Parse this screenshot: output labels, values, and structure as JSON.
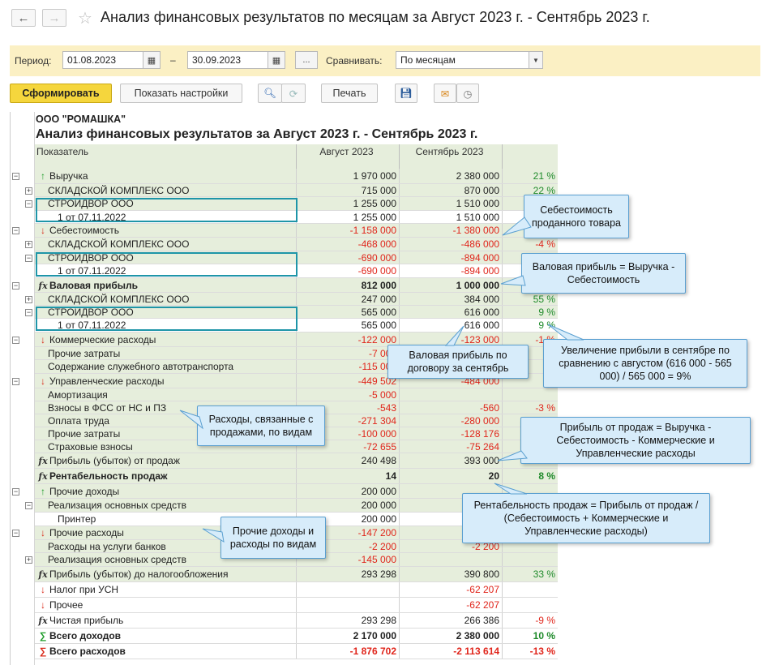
{
  "window": {
    "title": "Анализ финансовых результатов по месяцам за Август 2023 г. - Сентябрь 2023 г.",
    "back_icon": "←",
    "forward_icon": "→"
  },
  "filters": {
    "period_label": "Период:",
    "date_from": "01.08.2023",
    "dash": "–",
    "date_to": "30.09.2023",
    "more_label": "...",
    "compare_label": "Сравнивать:",
    "compare_value": "По месяцам"
  },
  "toolbar": {
    "generate_label": "Сформировать",
    "settings_label": "Показать настройки",
    "print_label": "Печать"
  },
  "report": {
    "company": "ООО \"РОМАШКА\"",
    "title": "Анализ финансовых результатов за Август 2023 г. - Сентябрь 2023 г.",
    "col_indicator": "Показатель",
    "col_aug": "Август 2023",
    "col_sep": "Сентябрь 2023",
    "rows": [
      {
        "name": "Выручка",
        "aug": "1 970 000",
        "sep": "2 380 000",
        "pct": "21 %",
        "icon": "↑",
        "iconClass": "up",
        "level": 0,
        "green": true,
        "bold": false,
        "toggle": "−"
      },
      {
        "name": "СКЛАДСКОЙ КОМПЛЕКС ООО",
        "aug": "715 000",
        "sep": "870 000",
        "pct": "22 %",
        "level": 1,
        "green": true,
        "toggle": "+"
      },
      {
        "name": "СТРОЙДВОР ООО",
        "aug": "1 255 000",
        "sep": "1 510 000",
        "pct": "",
        "level": 1,
        "green": true,
        "toggle": "−"
      },
      {
        "name": "1 от 07.11.2022",
        "aug": "1 255 000",
        "sep": "1 510 000",
        "pct": "",
        "level": 2,
        "green": false
      },
      {
        "name": "Себестоимость",
        "aug": "-1 158 000",
        "sep": "-1 380 000",
        "pct": "",
        "icon": "↓",
        "iconClass": "down",
        "level": 0,
        "green": true,
        "neg": true,
        "toggle": "−"
      },
      {
        "name": "СКЛАДСКОЙ КОМПЛЕКС ООО",
        "aug": "-468 000",
        "sep": "-486 000",
        "pct": "-4 %",
        "level": 1,
        "green": true,
        "neg": true,
        "toggle": "+"
      },
      {
        "name": "СТРОЙДВОР ООО",
        "aug": "-690 000",
        "sep": "-894 000",
        "pct": "",
        "level": 1,
        "green": true,
        "neg": true,
        "toggle": "−"
      },
      {
        "name": "1 от 07.11.2022",
        "aug": "-690 000",
        "sep": "-894 000",
        "pct": "",
        "level": 2,
        "green": false,
        "neg": true
      },
      {
        "name": "Валовая прибыль",
        "aug": "812 000",
        "sep": "1 000 000",
        "pct": "",
        "icon": "fx",
        "iconClass": "fx",
        "level": 0,
        "green": true,
        "bold": true,
        "toggle": "−"
      },
      {
        "name": "СКЛАДСКОЙ КОМПЛЕКС ООО",
        "aug": "247 000",
        "sep": "384 000",
        "pct": "55 %",
        "level": 1,
        "green": true,
        "toggle": "+"
      },
      {
        "name": "СТРОЙДВОР ООО",
        "aug": "565 000",
        "sep": "616 000",
        "pct": "9 %",
        "level": 1,
        "green": true,
        "toggle": "−"
      },
      {
        "name": "1 от 07.11.2022",
        "aug": "565 000",
        "sep": "616 000",
        "pct": "9 %",
        "level": 2,
        "green": false
      },
      {
        "name": "Коммерческие расходы",
        "aug": "-122 000",
        "sep": "-123 000",
        "pct": "-1 %",
        "icon": "↓",
        "iconClass": "down",
        "level": 0,
        "green": true,
        "neg": true,
        "toggle": "−"
      },
      {
        "name": "Прочие затраты",
        "aug": "-7 000",
        "sep": "",
        "pct": "5",
        "level": 1,
        "green": true,
        "neg": true
      },
      {
        "name": "Содержание служебного автотранспорта",
        "aug": "-115 000",
        "sep": "",
        "pct": "",
        "level": 1,
        "green": true,
        "neg": true
      },
      {
        "name": "Управленческие расходы",
        "aug": "-449 502",
        "sep": "-484 000",
        "pct": "",
        "icon": "↓",
        "iconClass": "down",
        "level": 0,
        "green": true,
        "neg": true,
        "toggle": "−"
      },
      {
        "name": "Амортизация",
        "aug": "-5 000",
        "sep": "",
        "pct": "",
        "level": 1,
        "green": true,
        "neg": true
      },
      {
        "name": "Взносы в ФСС от НС и ПЗ",
        "aug": "-543",
        "sep": "-560",
        "pct": "-3 %",
        "level": 1,
        "green": true,
        "neg": true
      },
      {
        "name": "Оплата труда",
        "aug": "-271 304",
        "sep": "-280 000",
        "pct": "",
        "level": 1,
        "green": true,
        "neg": true
      },
      {
        "name": "Прочие затраты",
        "aug": "-100 000",
        "sep": "-128 176",
        "pct": "",
        "level": 1,
        "green": true,
        "neg": true
      },
      {
        "name": "Страховые взносы",
        "aug": "-72 655",
        "sep": "-75 264",
        "pct": "",
        "level": 1,
        "green": true,
        "neg": true
      },
      {
        "name": "Прибыль (убыток) от продаж",
        "aug": "240 498",
        "sep": "393 000",
        "pct": "",
        "icon": "fx",
        "iconClass": "fx",
        "level": 0,
        "green": true
      },
      {
        "name": "Рентабельность продаж",
        "aug": "14",
        "sep": "20",
        "pct": "8 %",
        "icon": "fx",
        "iconClass": "fx",
        "level": 0,
        "green": true,
        "bold": true
      },
      {
        "name": "Прочие доходы",
        "aug": "200 000",
        "sep": "",
        "pct": "",
        "icon": "↑",
        "iconClass": "up",
        "level": 0,
        "green": true,
        "toggle": "−"
      },
      {
        "name": "Реализация основных средств",
        "aug": "200 000",
        "sep": "",
        "pct": "",
        "level": 1,
        "green": true,
        "toggle": "−"
      },
      {
        "name": "Принтер",
        "aug": "200 000",
        "sep": "",
        "pct": "",
        "level": 2,
        "green": false
      },
      {
        "name": "Прочие расходы",
        "aug": "-147 200",
        "sep": "",
        "pct": "",
        "icon": "↓",
        "iconClass": "down",
        "level": 0,
        "green": true,
        "neg": true,
        "toggle": "−"
      },
      {
        "name": "Расходы на услуги банков",
        "aug": "-2 200",
        "sep": "-2 200",
        "pct": "",
        "level": 1,
        "green": true,
        "neg": true
      },
      {
        "name": "Реализация основных средств",
        "aug": "-145 000",
        "sep": "",
        "pct": "",
        "level": 1,
        "green": true,
        "neg": true,
        "toggle": "+"
      },
      {
        "name": "Прибыль (убыток) до налогообложения",
        "aug": "293 298",
        "sep": "390 800",
        "pct": "33 %",
        "icon": "fx",
        "iconClass": "fx",
        "level": 0,
        "green": true
      },
      {
        "name": "Налог при УСН",
        "aug": "",
        "sep": "-62 207",
        "pct": "",
        "icon": "↓",
        "iconClass": "down",
        "level": 0,
        "green": false,
        "neg": true
      },
      {
        "name": "Прочее",
        "aug": "",
        "sep": "-62 207",
        "pct": "",
        "icon": "↓",
        "iconClass": "down",
        "level": 0,
        "green": false,
        "neg": true
      },
      {
        "name": "Чистая прибыль",
        "aug": "293 298",
        "sep": "266 386",
        "pct": "-9 %",
        "icon": "fx",
        "iconClass": "fx",
        "level": 0,
        "green": false
      },
      {
        "name": "Всего доходов",
        "aug": "2 170 000",
        "sep": "2 380 000",
        "pct": "10 %",
        "icon": "∑",
        "iconClass": "up",
        "level": 0,
        "green": false,
        "bold": true
      },
      {
        "name": "Всего расходов",
        "aug": "-1 876 702",
        "sep": "-2 113 614",
        "pct": "-13 %",
        "icon": "∑",
        "iconClass": "sig",
        "level": 0,
        "green": false,
        "bold": true,
        "neg": true
      }
    ]
  },
  "callouts": {
    "cost": "Себестоимость проданного товара",
    "gross": "Валовая прибыль = Выручка - Себестоимость",
    "gross_contract": "Валовая прибыль по договору за сентябрь",
    "increase": "Увеличение прибыли в сентябре по сравнению с августом (616 000 - 565 000) / 565 000 = 9%",
    "expenses": "Расходы, связанные с продажами, по видам",
    "sales_profit": "Прибыль от продаж = Выручка - Себестоимость - Коммерческие и Управленческие расходы",
    "profitability": "Рентабельность продаж = Прибыль от продаж / (Себестоимость + Коммерческие и Управленческие расходы)",
    "other": "Прочие доходы и расходы по видам"
  }
}
